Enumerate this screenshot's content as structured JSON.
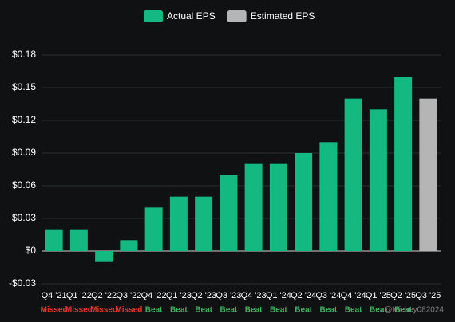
{
  "chart_data": {
    "type": "bar",
    "categories": [
      "Q4 '21",
      "Q1 '22",
      "Q2 '22",
      "Q3 '22",
      "Q4 '22",
      "Q1 '23",
      "Q2 '23",
      "Q3 '23",
      "Q4 '23",
      "Q1 '24",
      "Q2 '24",
      "Q3 '24",
      "Q4 '24",
      "Q1 '25",
      "Q2 '25",
      "Q3 '25"
    ],
    "status": [
      "Missed",
      "Missed",
      "Missed",
      "Missed",
      "Beat",
      "Beat",
      "Beat",
      "Beat",
      "Beat",
      "Beat",
      "Beat",
      "Beat",
      "Beat",
      "Beat",
      "Beat",
      null
    ],
    "status_colors": [
      "#e5342b",
      "#e5342b",
      "#e5342b",
      "#e5342b",
      "#3fae5f",
      "#3fae5f",
      "#3fae5f",
      "#3fae5f",
      "#3fae5f",
      "#3fae5f",
      "#3fae5f",
      "#3fae5f",
      "#3fae5f",
      "#3fae5f",
      "#3fae5f",
      null
    ],
    "series": [
      {
        "name": "Actual EPS",
        "color": "#14b981",
        "values": [
          0.02,
          0.02,
          -0.01,
          0.01,
          0.04,
          0.05,
          0.05,
          0.07,
          0.08,
          0.08,
          0.09,
          0.1,
          0.14,
          0.13,
          0.16,
          null
        ]
      },
      {
        "name": "Estimated EPS",
        "color": "#b5b5b5",
        "values": [
          null,
          null,
          null,
          null,
          null,
          null,
          null,
          null,
          null,
          null,
          null,
          null,
          null,
          null,
          null,
          0.14
        ]
      }
    ],
    "ylim": [
      -0.03,
      0.18
    ],
    "yticks": [
      {
        "value": -0.03,
        "label": "-$0.03"
      },
      {
        "value": 0,
        "label": "$0"
      },
      {
        "value": 0.03,
        "label": "$0.03"
      },
      {
        "value": 0.06,
        "label": "$0.06"
      },
      {
        "value": 0.09,
        "label": "$0.09"
      },
      {
        "value": 0.12,
        "label": "$0.12"
      },
      {
        "value": 0.15,
        "label": "$0.15"
      },
      {
        "value": 0.18,
        "label": "$0.18"
      }
    ],
    "grid": true,
    "legend": "top",
    "watermark": "@Mickey082024"
  }
}
